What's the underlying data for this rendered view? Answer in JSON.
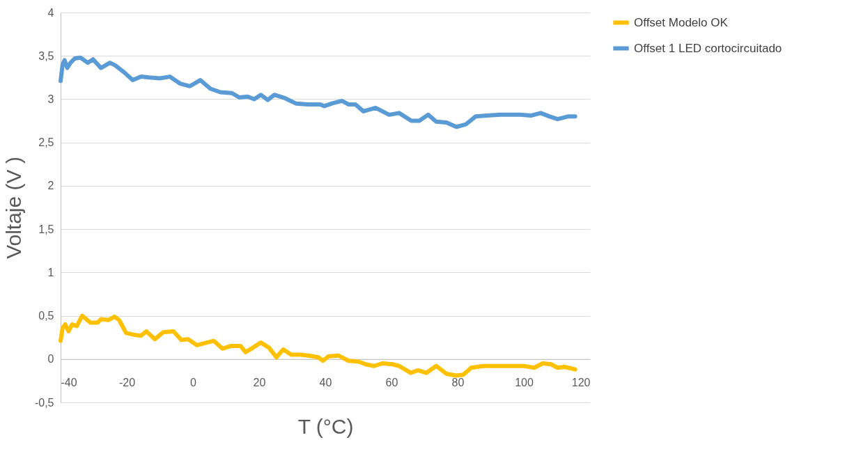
{
  "chart_data": {
    "type": "line",
    "xlabel": "T (°C)",
    "ylabel": "Voltaje (V )",
    "xlim": [
      -40,
      120
    ],
    "xticks": [
      -40,
      -20,
      0,
      20,
      40,
      60,
      80,
      100,
      120
    ],
    "ylim": [
      -0.5,
      4
    ],
    "yticks": [
      {
        "value": -0.5,
        "label": "-0,5"
      },
      0,
      {
        "value": 0.5,
        "label": "0,5"
      },
      1,
      {
        "value": 1.5,
        "label": "1,5"
      },
      2,
      {
        "value": 2.5,
        "label": "2,5"
      },
      3,
      {
        "value": 3.5,
        "label": "3,5"
      },
      4
    ],
    "grid": "y",
    "legend": "right",
    "line_style": "solid",
    "marker": "none",
    "series": [
      {
        "name": "Offset Modelo OK",
        "color": "#ffc000",
        "x": [
          -40,
          -39.4,
          -38.6,
          -37.6,
          -36.5,
          -35.1,
          -33.5,
          -31,
          -28.8,
          -27.8,
          -25.5,
          -23.7,
          -22.3,
          -20.2,
          -17.8,
          -15.7,
          -14.1,
          -11.5,
          -9,
          -5.9,
          -3.5,
          -1.5,
          1.2,
          4.2,
          6.3,
          8.9,
          11.4,
          14.4,
          15.9,
          18.1,
          20.5,
          23,
          25.2,
          27.3,
          29.7,
          32.4,
          34.8,
          37.9,
          39.3,
          40.9,
          44,
          47,
          50.1,
          52.1,
          54.8,
          57.2,
          60.3,
          62.3,
          65.8,
          68,
          70.5,
          73.5,
          76.6,
          79.6,
          81.7,
          84.1,
          87.8,
          93.9,
          100,
          103.1,
          105.7,
          108.2,
          110.2,
          112.3,
          115.5
        ],
        "values": [
          0.21,
          0.36,
          0.4,
          0.32,
          0.4,
          0.38,
          0.5,
          0.42,
          0.42,
          0.46,
          0.45,
          0.49,
          0.45,
          0.3,
          0.28,
          0.27,
          0.32,
          0.23,
          0.31,
          0.32,
          0.22,
          0.23,
          0.16,
          0.19,
          0.21,
          0.12,
          0.15,
          0.15,
          0.08,
          0.13,
          0.19,
          0.13,
          0.02,
          0.11,
          0.05,
          0.05,
          0.04,
          0.02,
          -0.02,
          0.03,
          0.04,
          -0.02,
          -0.03,
          -0.06,
          -0.08,
          -0.05,
          -0.06,
          -0.08,
          -0.16,
          -0.13,
          -0.16,
          -0.08,
          -0.17,
          -0.19,
          -0.18,
          -0.1,
          -0.08,
          -0.08,
          -0.08,
          -0.1,
          -0.05,
          -0.06,
          -0.1,
          -0.09,
          -0.12
        ]
      },
      {
        "name": "Offset 1 LED cortocircuitado",
        "color": "#5b9bd5",
        "x": [
          -40,
          -39.4,
          -38.8,
          -38,
          -37,
          -35.7,
          -34,
          -31.8,
          -30.2,
          -27.8,
          -25.1,
          -23.5,
          -20.8,
          -18.2,
          -15.7,
          -13.3,
          -10,
          -7,
          -3.9,
          -0.9,
          2.2,
          5.3,
          8.3,
          11.8,
          14,
          16.5,
          18.5,
          20.5,
          22.6,
          24.6,
          27.9,
          31.1,
          34.8,
          38.5,
          39.7,
          42,
          45,
          47,
          49.1,
          51.5,
          55.2,
          59.3,
          62.3,
          66,
          68.4,
          71.1,
          73.5,
          76.6,
          79.6,
          82.5,
          85.4,
          88.8,
          92.9,
          95.5,
          99,
          102.1,
          105.1,
          107.8,
          110.2,
          113.3,
          115.5
        ],
        "values": [
          3.21,
          3.4,
          3.45,
          3.36,
          3.42,
          3.47,
          3.48,
          3.42,
          3.46,
          3.36,
          3.42,
          3.39,
          3.31,
          3.22,
          3.26,
          3.25,
          3.24,
          3.26,
          3.18,
          3.15,
          3.22,
          3.12,
          3.08,
          3.07,
          3.02,
          3.03,
          3.0,
          3.05,
          2.99,
          3.05,
          3.01,
          2.95,
          2.94,
          2.94,
          2.92,
          2.95,
          2.98,
          2.94,
          2.94,
          2.86,
          2.9,
          2.82,
          2.84,
          2.75,
          2.75,
          2.82,
          2.74,
          2.73,
          2.68,
          2.71,
          2.8,
          2.81,
          2.82,
          2.82,
          2.82,
          2.81,
          2.84,
          2.8,
          2.77,
          2.8,
          2.8
        ]
      }
    ]
  }
}
